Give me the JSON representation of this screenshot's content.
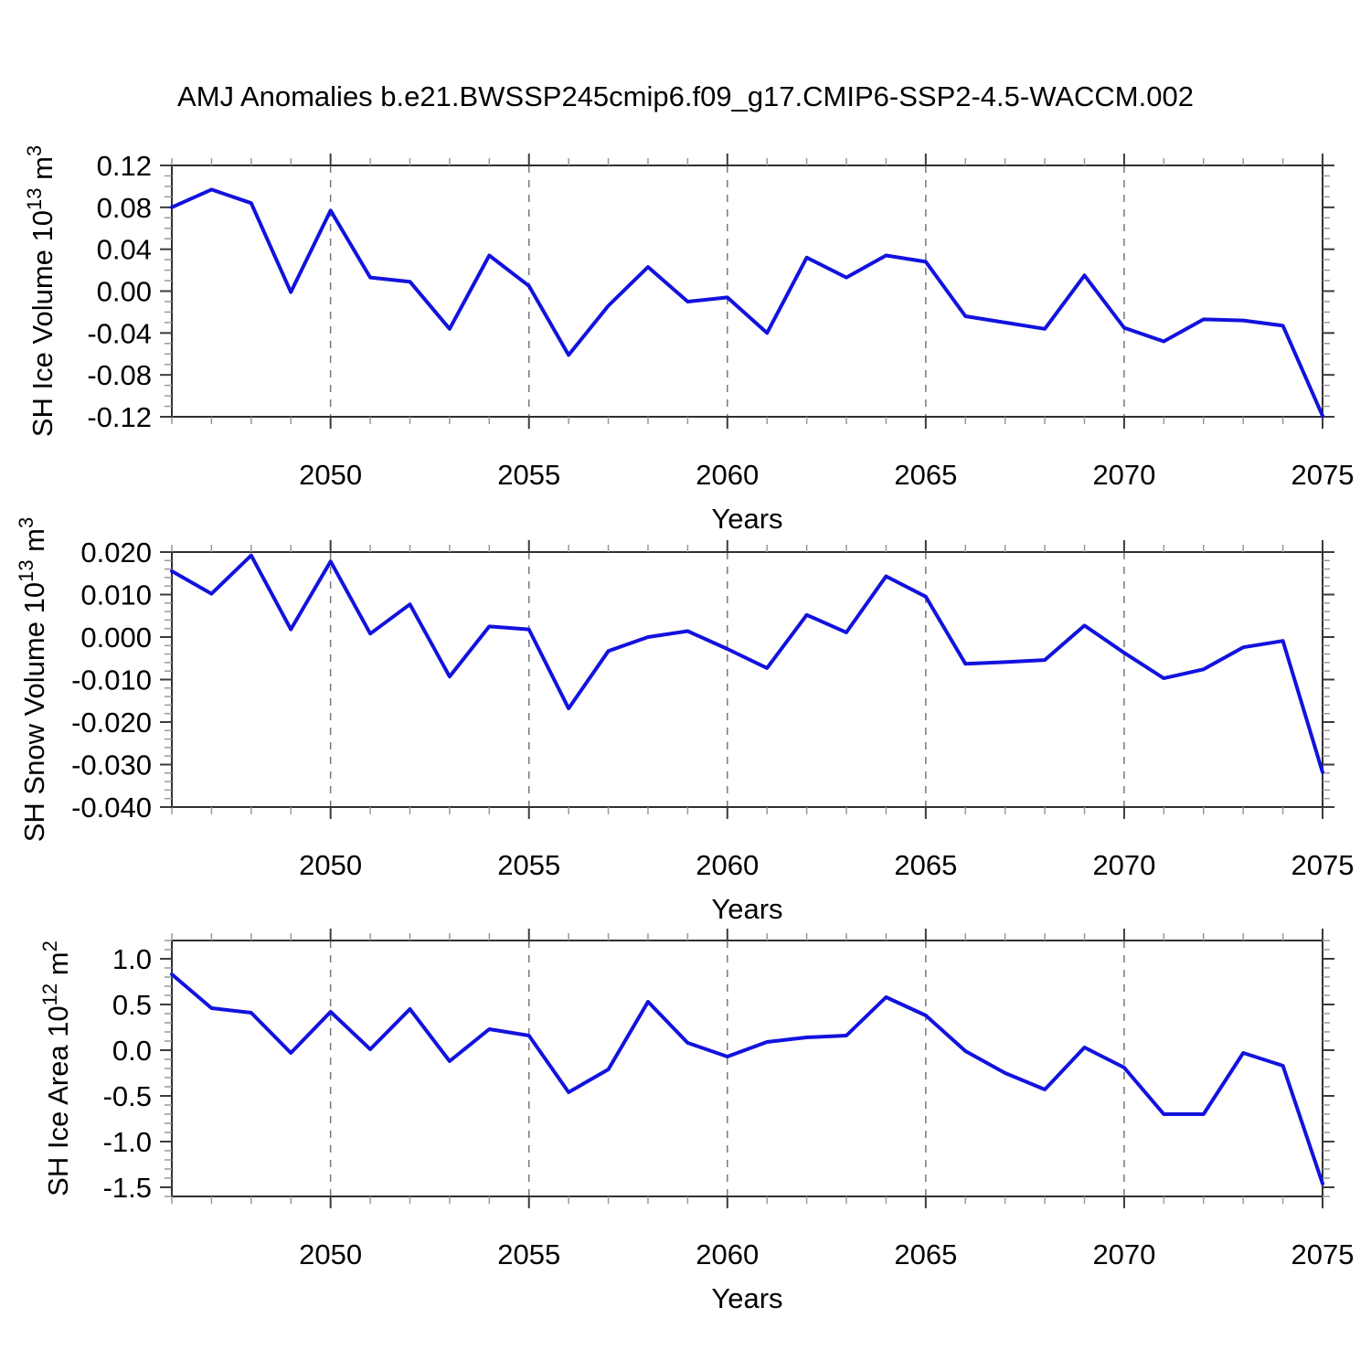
{
  "title": "AMJ Anomalies b.e21.BWSSP245cmip6.f09_g17.CMIP6-SSP2-4.5-WACCM.002",
  "x_axis": {
    "label": "Years",
    "start": 2046,
    "end": 2075,
    "major_ticks": [
      2050,
      2055,
      2060,
      2065,
      2070,
      2075
    ],
    "major_tick_labels": [
      "2050",
      "2055",
      "2060",
      "2065",
      "2070",
      "2075"
    ],
    "minor_step": 1,
    "gridline_years": [
      2050,
      2055,
      2060,
      2065,
      2070
    ]
  },
  "style": {
    "line_color": "#1212de",
    "axis_color": "#2f2f2f",
    "major_tick_color": "#3c3c3c",
    "minor_tick_color": "#999999",
    "grid_color": "#787878",
    "text_color": "#000000",
    "background": "#ffffff"
  },
  "chart_data": [
    {
      "type": "line",
      "name": "sh-ice-volume",
      "ylabel_segments": [
        {
          "t": "SH Ice Volume 10"
        },
        {
          "t": "13",
          "sup": true
        },
        {
          "t": " m"
        },
        {
          "t": "3",
          "sup": true
        }
      ],
      "ylabel_plain": "SH Ice Volume 10^13 m^3",
      "xlabel": "Years",
      "ylim": [
        -0.12,
        0.12
      ],
      "ytick_major_values": [
        0.12,
        0.08,
        0.04,
        0.0,
        -0.04,
        -0.08,
        -0.12
      ],
      "ytick_labels": [
        "0.12",
        "0.08",
        "0.04",
        "0.00",
        "-0.04",
        "-0.08",
        "-0.12"
      ],
      "ytick_minor_step": 0.01,
      "grid": "vertical-dashed",
      "legend": "none",
      "x": [
        2046,
        2047,
        2048,
        2049,
        2050,
        2051,
        2052,
        2053,
        2054,
        2055,
        2056,
        2057,
        2058,
        2059,
        2060,
        2061,
        2062,
        2063,
        2064,
        2065,
        2066,
        2067,
        2068,
        2069,
        2070,
        2071,
        2072,
        2073,
        2074,
        2075
      ],
      "values": [
        0.08,
        0.097,
        0.084,
        -0.001,
        0.077,
        0.013,
        0.009,
        -0.036,
        0.034,
        0.005,
        -0.061,
        -0.014,
        0.023,
        -0.01,
        -0.006,
        -0.04,
        0.032,
        0.013,
        0.034,
        0.028,
        -0.024,
        -0.03,
        -0.036,
        0.015,
        -0.035,
        -0.048,
        -0.027,
        -0.028,
        -0.033,
        -0.119
      ]
    },
    {
      "type": "line",
      "name": "sh-snow-volume",
      "ylabel_segments": [
        {
          "t": "SH Snow Volume 10"
        },
        {
          "t": "13",
          "sup": true
        },
        {
          "t": " m"
        },
        {
          "t": "3",
          "sup": true
        }
      ],
      "ylabel_plain": "SH Snow Volume 10^13 m^3",
      "xlabel": "Years",
      "ylim": [
        -0.04,
        0.02
      ],
      "ytick_major_values": [
        0.02,
        0.01,
        0.0,
        -0.01,
        -0.02,
        -0.03,
        -0.04
      ],
      "ytick_labels": [
        "0.020",
        "0.010",
        "0.000",
        "-0.010",
        "-0.020",
        "-0.030",
        "-0.040"
      ],
      "ytick_minor_step": 0.002,
      "grid": "vertical-dashed",
      "legend": "none",
      "x": [
        2046,
        2047,
        2048,
        2049,
        2050,
        2051,
        2052,
        2053,
        2054,
        2055,
        2056,
        2057,
        2058,
        2059,
        2060,
        2061,
        2062,
        2063,
        2064,
        2065,
        2066,
        2067,
        2068,
        2069,
        2070,
        2071,
        2072,
        2073,
        2074,
        2075
      ],
      "values": [
        0.0155,
        0.0102,
        0.0192,
        0.0018,
        0.0178,
        0.0008,
        0.0077,
        -0.0093,
        0.0025,
        0.0018,
        -0.0168,
        -0.0033,
        0.0,
        0.0014,
        -0.0028,
        -0.0073,
        0.0052,
        0.0011,
        0.0143,
        0.0095,
        -0.0063,
        -0.0059,
        -0.0054,
        0.0027,
        -0.0037,
        -0.0097,
        -0.0076,
        -0.0024,
        -0.0009,
        -0.0318
      ]
    },
    {
      "type": "line",
      "name": "sh-ice-area",
      "ylabel_segments": [
        {
          "t": "SH Ice Area 10"
        },
        {
          "t": "12",
          "sup": true
        },
        {
          "t": " m"
        },
        {
          "t": "2",
          "sup": true
        }
      ],
      "ylabel_plain": "SH Ice Area 10^12 m^2",
      "xlabel": "Years",
      "ylim": [
        -1.6,
        1.2
      ],
      "ytick_major_values": [
        1.0,
        0.5,
        0.0,
        -0.5,
        -1.0,
        -1.5
      ],
      "ytick_labels": [
        "1.0",
        "0.5",
        "0.0",
        "-0.5",
        "-1.0",
        "-1.5"
      ],
      "ytick_minor_step": 0.1,
      "grid": "vertical-dashed",
      "legend": "none",
      "x": [
        2046,
        2047,
        2048,
        2049,
        2050,
        2051,
        2052,
        2053,
        2054,
        2055,
        2056,
        2057,
        2058,
        2059,
        2060,
        2061,
        2062,
        2063,
        2064,
        2065,
        2066,
        2067,
        2068,
        2069,
        2070,
        2071,
        2072,
        2073,
        2074,
        2075
      ],
      "values": [
        0.83,
        0.46,
        0.41,
        -0.03,
        0.42,
        0.01,
        0.45,
        -0.12,
        0.23,
        0.16,
        -0.46,
        -0.21,
        0.53,
        0.08,
        -0.07,
        0.09,
        0.14,
        0.16,
        0.58,
        0.38,
        -0.01,
        -0.25,
        -0.43,
        0.03,
        -0.19,
        -0.7,
        -0.7,
        -0.03,
        -0.17,
        -1.46
      ]
    }
  ]
}
